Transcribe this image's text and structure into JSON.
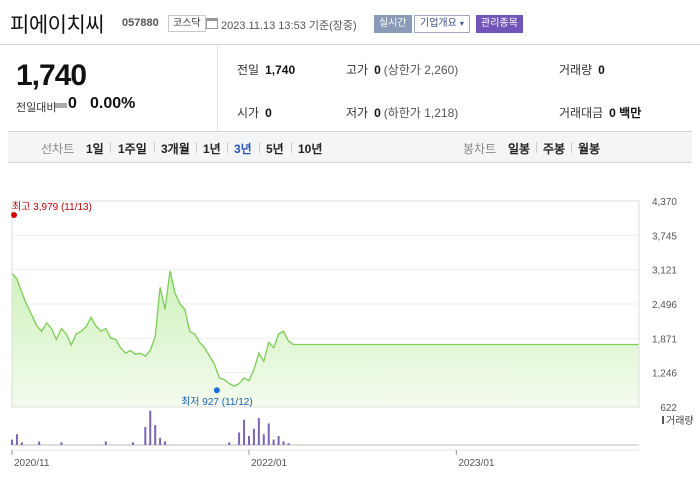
{
  "header": {
    "stock_name": "피에이치씨",
    "stock_code": "057880",
    "market": "코스닥",
    "as_of": "2023.11.13 13:53 기준(장중)",
    "realtime_label": "실시간",
    "company_label": "기업개요",
    "caret": "▾",
    "managed_label": "관리종목"
  },
  "summary": {
    "price": "1,740",
    "change_label": "전일대비",
    "change_value": "0",
    "change_pct": "0.00%",
    "prev_close_label": "전일",
    "prev_close": "1,740",
    "open_label": "시가",
    "open": "0",
    "high_label": "고가",
    "high": "0",
    "upper_limit": "(상한가 2,260)",
    "low_label": "저가",
    "low": "0",
    "lower_limit": "(하한가 1,218)",
    "volume_label": "거래량",
    "volume": "0",
    "amount_label": "거래대금",
    "amount": "0 백만"
  },
  "period_bar": {
    "line_label": "선차트",
    "periods": [
      "1일",
      "1주일",
      "3개월",
      "1년",
      "3년",
      "5년",
      "10년"
    ],
    "active_period": "3년",
    "candle_label": "봉차트",
    "candles": [
      "일봉",
      "주봉",
      "월봉"
    ]
  },
  "chart_data": {
    "type": "area",
    "y_ticks": [
      "4,370",
      "3,745",
      "3,121",
      "2,496",
      "1,871",
      "1,246",
      "622"
    ],
    "ylim": [
      622,
      4370
    ],
    "x_tick_labels": [
      "2020/11",
      "2022/01",
      "2023/01"
    ],
    "max_label": "최고 3,979 (11/13)",
    "min_label": "최저 927 (11/12)",
    "volume_label": "거래량",
    "line_color": "#7fd35a",
    "fill_color": "#e4f7d8",
    "series": [
      {
        "x": 0,
        "y": 3060
      },
      {
        "x": 2,
        "y": 2950
      },
      {
        "x": 4,
        "y": 2700
      },
      {
        "x": 6,
        "y": 2480
      },
      {
        "x": 8,
        "y": 2300
      },
      {
        "x": 10,
        "y": 2100
      },
      {
        "x": 12,
        "y": 2000
      },
      {
        "x": 14,
        "y": 2150
      },
      {
        "x": 16,
        "y": 2050
      },
      {
        "x": 18,
        "y": 1850
      },
      {
        "x": 20,
        "y": 2050
      },
      {
        "x": 22,
        "y": 1950
      },
      {
        "x": 24,
        "y": 1750
      },
      {
        "x": 26,
        "y": 1950
      },
      {
        "x": 28,
        "y": 2000
      },
      {
        "x": 30,
        "y": 2080
      },
      {
        "x": 32,
        "y": 2250
      },
      {
        "x": 34,
        "y": 2100
      },
      {
        "x": 36,
        "y": 2000
      },
      {
        "x": 38,
        "y": 2050
      },
      {
        "x": 40,
        "y": 1880
      },
      {
        "x": 42,
        "y": 1850
      },
      {
        "x": 44,
        "y": 1700
      },
      {
        "x": 46,
        "y": 1600
      },
      {
        "x": 48,
        "y": 1650
      },
      {
        "x": 50,
        "y": 1580
      },
      {
        "x": 52,
        "y": 1600
      },
      {
        "x": 54,
        "y": 1550
      },
      {
        "x": 56,
        "y": 1650
      },
      {
        "x": 58,
        "y": 1900
      },
      {
        "x": 60,
        "y": 2800
      },
      {
        "x": 62,
        "y": 2400
      },
      {
        "x": 64,
        "y": 3100
      },
      {
        "x": 66,
        "y": 2700
      },
      {
        "x": 68,
        "y": 2500
      },
      {
        "x": 70,
        "y": 2400
      },
      {
        "x": 72,
        "y": 2000
      },
      {
        "x": 74,
        "y": 1950
      },
      {
        "x": 76,
        "y": 1800
      },
      {
        "x": 78,
        "y": 1700
      },
      {
        "x": 80,
        "y": 1550
      },
      {
        "x": 82,
        "y": 1400
      },
      {
        "x": 84,
        "y": 1150
      },
      {
        "x": 86,
        "y": 1120
      },
      {
        "x": 88,
        "y": 1050
      },
      {
        "x": 90,
        "y": 1000
      },
      {
        "x": 92,
        "y": 1050
      },
      {
        "x": 94,
        "y": 1150
      },
      {
        "x": 96,
        "y": 1100
      },
      {
        "x": 98,
        "y": 1300
      },
      {
        "x": 100,
        "y": 1600
      },
      {
        "x": 102,
        "y": 1450
      },
      {
        "x": 104,
        "y": 1800
      },
      {
        "x": 106,
        "y": 1700
      },
      {
        "x": 108,
        "y": 1950
      },
      {
        "x": 110,
        "y": 2000
      },
      {
        "x": 112,
        "y": 1820
      },
      {
        "x": 114,
        "y": 1760
      },
      {
        "x": 130,
        "y": 1760
      },
      {
        "x": 160,
        "y": 1760
      },
      {
        "x": 190,
        "y": 1760
      },
      {
        "x": 220,
        "y": 1760
      },
      {
        "x": 254,
        "y": 1760
      }
    ],
    "x_range": [
      0,
      254
    ],
    "x_tick_positions": [
      0,
      96,
      180
    ],
    "max_point": {
      "x": 0,
      "y": 3979
    },
    "min_point": {
      "x": 83,
      "y": 927
    },
    "volumes": [
      {
        "x": 0,
        "v": 6
      },
      {
        "x": 2,
        "v": 12
      },
      {
        "x": 4,
        "v": 3
      },
      {
        "x": 11,
        "v": 4
      },
      {
        "x": 20,
        "v": 3
      },
      {
        "x": 38,
        "v": 4
      },
      {
        "x": 49,
        "v": 3
      },
      {
        "x": 54,
        "v": 20
      },
      {
        "x": 56,
        "v": 38
      },
      {
        "x": 58,
        "v": 22
      },
      {
        "x": 60,
        "v": 8
      },
      {
        "x": 62,
        "v": 4
      },
      {
        "x": 88,
        "v": 3
      },
      {
        "x": 92,
        "v": 14
      },
      {
        "x": 94,
        "v": 28
      },
      {
        "x": 96,
        "v": 10
      },
      {
        "x": 98,
        "v": 18
      },
      {
        "x": 100,
        "v": 30
      },
      {
        "x": 102,
        "v": 12
      },
      {
        "x": 104,
        "v": 24
      },
      {
        "x": 106,
        "v": 6
      },
      {
        "x": 108,
        "v": 10
      },
      {
        "x": 110,
        "v": 4
      },
      {
        "x": 112,
        "v": 2
      }
    ],
    "volume_max": 40
  }
}
